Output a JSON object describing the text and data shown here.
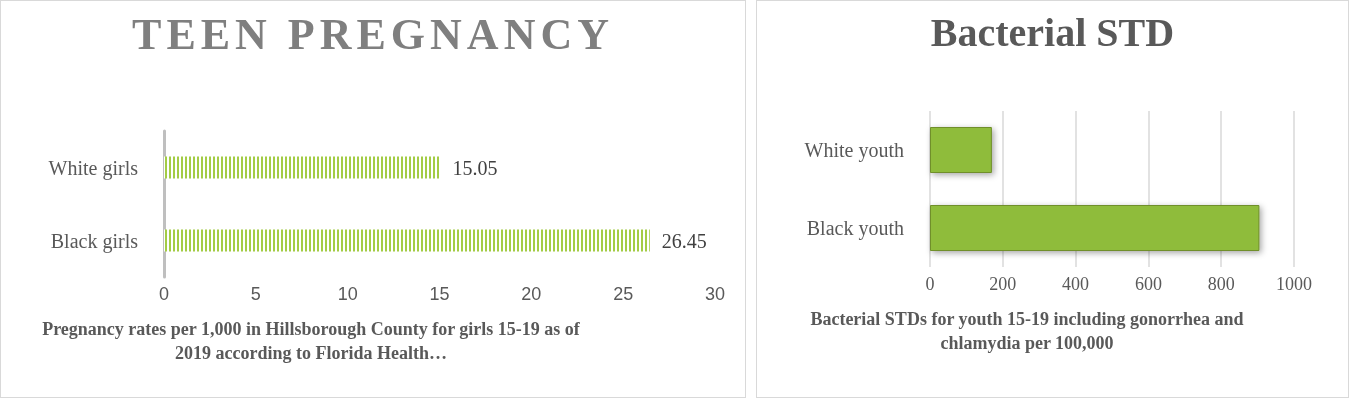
{
  "chart_data": [
    {
      "type": "bar",
      "orientation": "horizontal",
      "title": "TEEN PREGNANCY",
      "xlabel": "Pregnancy rates per 1,000 in Hillsborough County for girls 15-19 as of 2019 according to Florida Health…",
      "categories": [
        "White girls",
        "Black girls"
      ],
      "values": [
        15.05,
        26.45
      ],
      "color": "#a3cc45",
      "xlim": [
        0,
        30
      ],
      "xticks": [
        0,
        5,
        10,
        15,
        20,
        25,
        30
      ],
      "grid": false,
      "data_labels": true
    },
    {
      "type": "bar",
      "orientation": "horizontal",
      "title": "Bacterial STD",
      "xlabel": "Bacterial STDs for youth 15-19 including gonorrhea and chlamydia per 100,000",
      "categories": [
        "White youth",
        "Black youth"
      ],
      "values": [
        170,
        905
      ],
      "color": "#8fbc3a",
      "xlim": [
        0,
        1000
      ],
      "xticks": [
        0,
        200,
        400,
        600,
        800,
        1000
      ],
      "grid": "x"
    }
  ]
}
